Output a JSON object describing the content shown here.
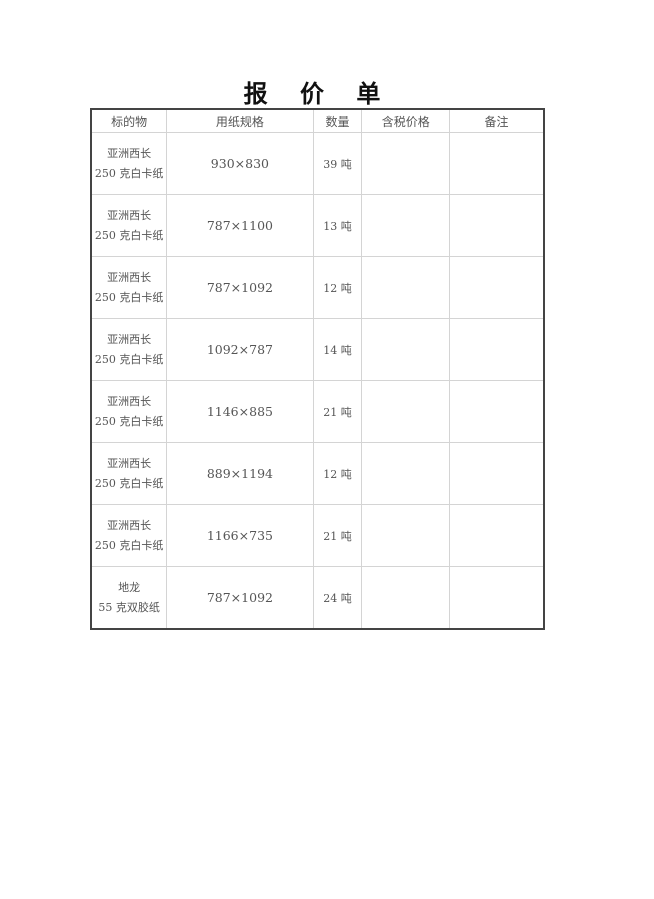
{
  "title": "报 价 单",
  "table": {
    "headers": [
      "标的物",
      "用纸规格",
      "数量",
      "含税价格",
      "备注"
    ],
    "rows": [
      {
        "item": [
          "亚洲西长",
          "250 克白卡纸"
        ],
        "spec": "930×830",
        "qty": "39 吨",
        "price": "",
        "note": ""
      },
      {
        "item": [
          "亚洲西长",
          "250 克白卡纸"
        ],
        "spec": "787×1100",
        "qty": "13 吨",
        "price": "",
        "note": ""
      },
      {
        "item": [
          "亚洲西长",
          "250 克白卡纸"
        ],
        "spec": "787×1092",
        "qty": "12 吨",
        "price": "",
        "note": ""
      },
      {
        "item": [
          "亚洲西长",
          "250 克白卡纸"
        ],
        "spec": "1092×787",
        "qty": "14 吨",
        "price": "",
        "note": ""
      },
      {
        "item": [
          "亚洲西长",
          "250 克白卡纸"
        ],
        "spec": "1146×885",
        "qty": "21 吨",
        "price": "",
        "note": ""
      },
      {
        "item": [
          "亚洲西长",
          "250 克白卡纸"
        ],
        "spec": "889×1194",
        "qty": "12 吨",
        "price": "",
        "note": ""
      },
      {
        "item": [
          "亚洲西长",
          "250 克白卡纸"
        ],
        "spec": "1166×735",
        "qty": "21 吨",
        "price": "",
        "note": ""
      },
      {
        "item": [
          "地龙",
          "55 克双胶纸"
        ],
        "spec": "787×1092",
        "qty": "24 吨",
        "price": "",
        "note": ""
      }
    ]
  }
}
